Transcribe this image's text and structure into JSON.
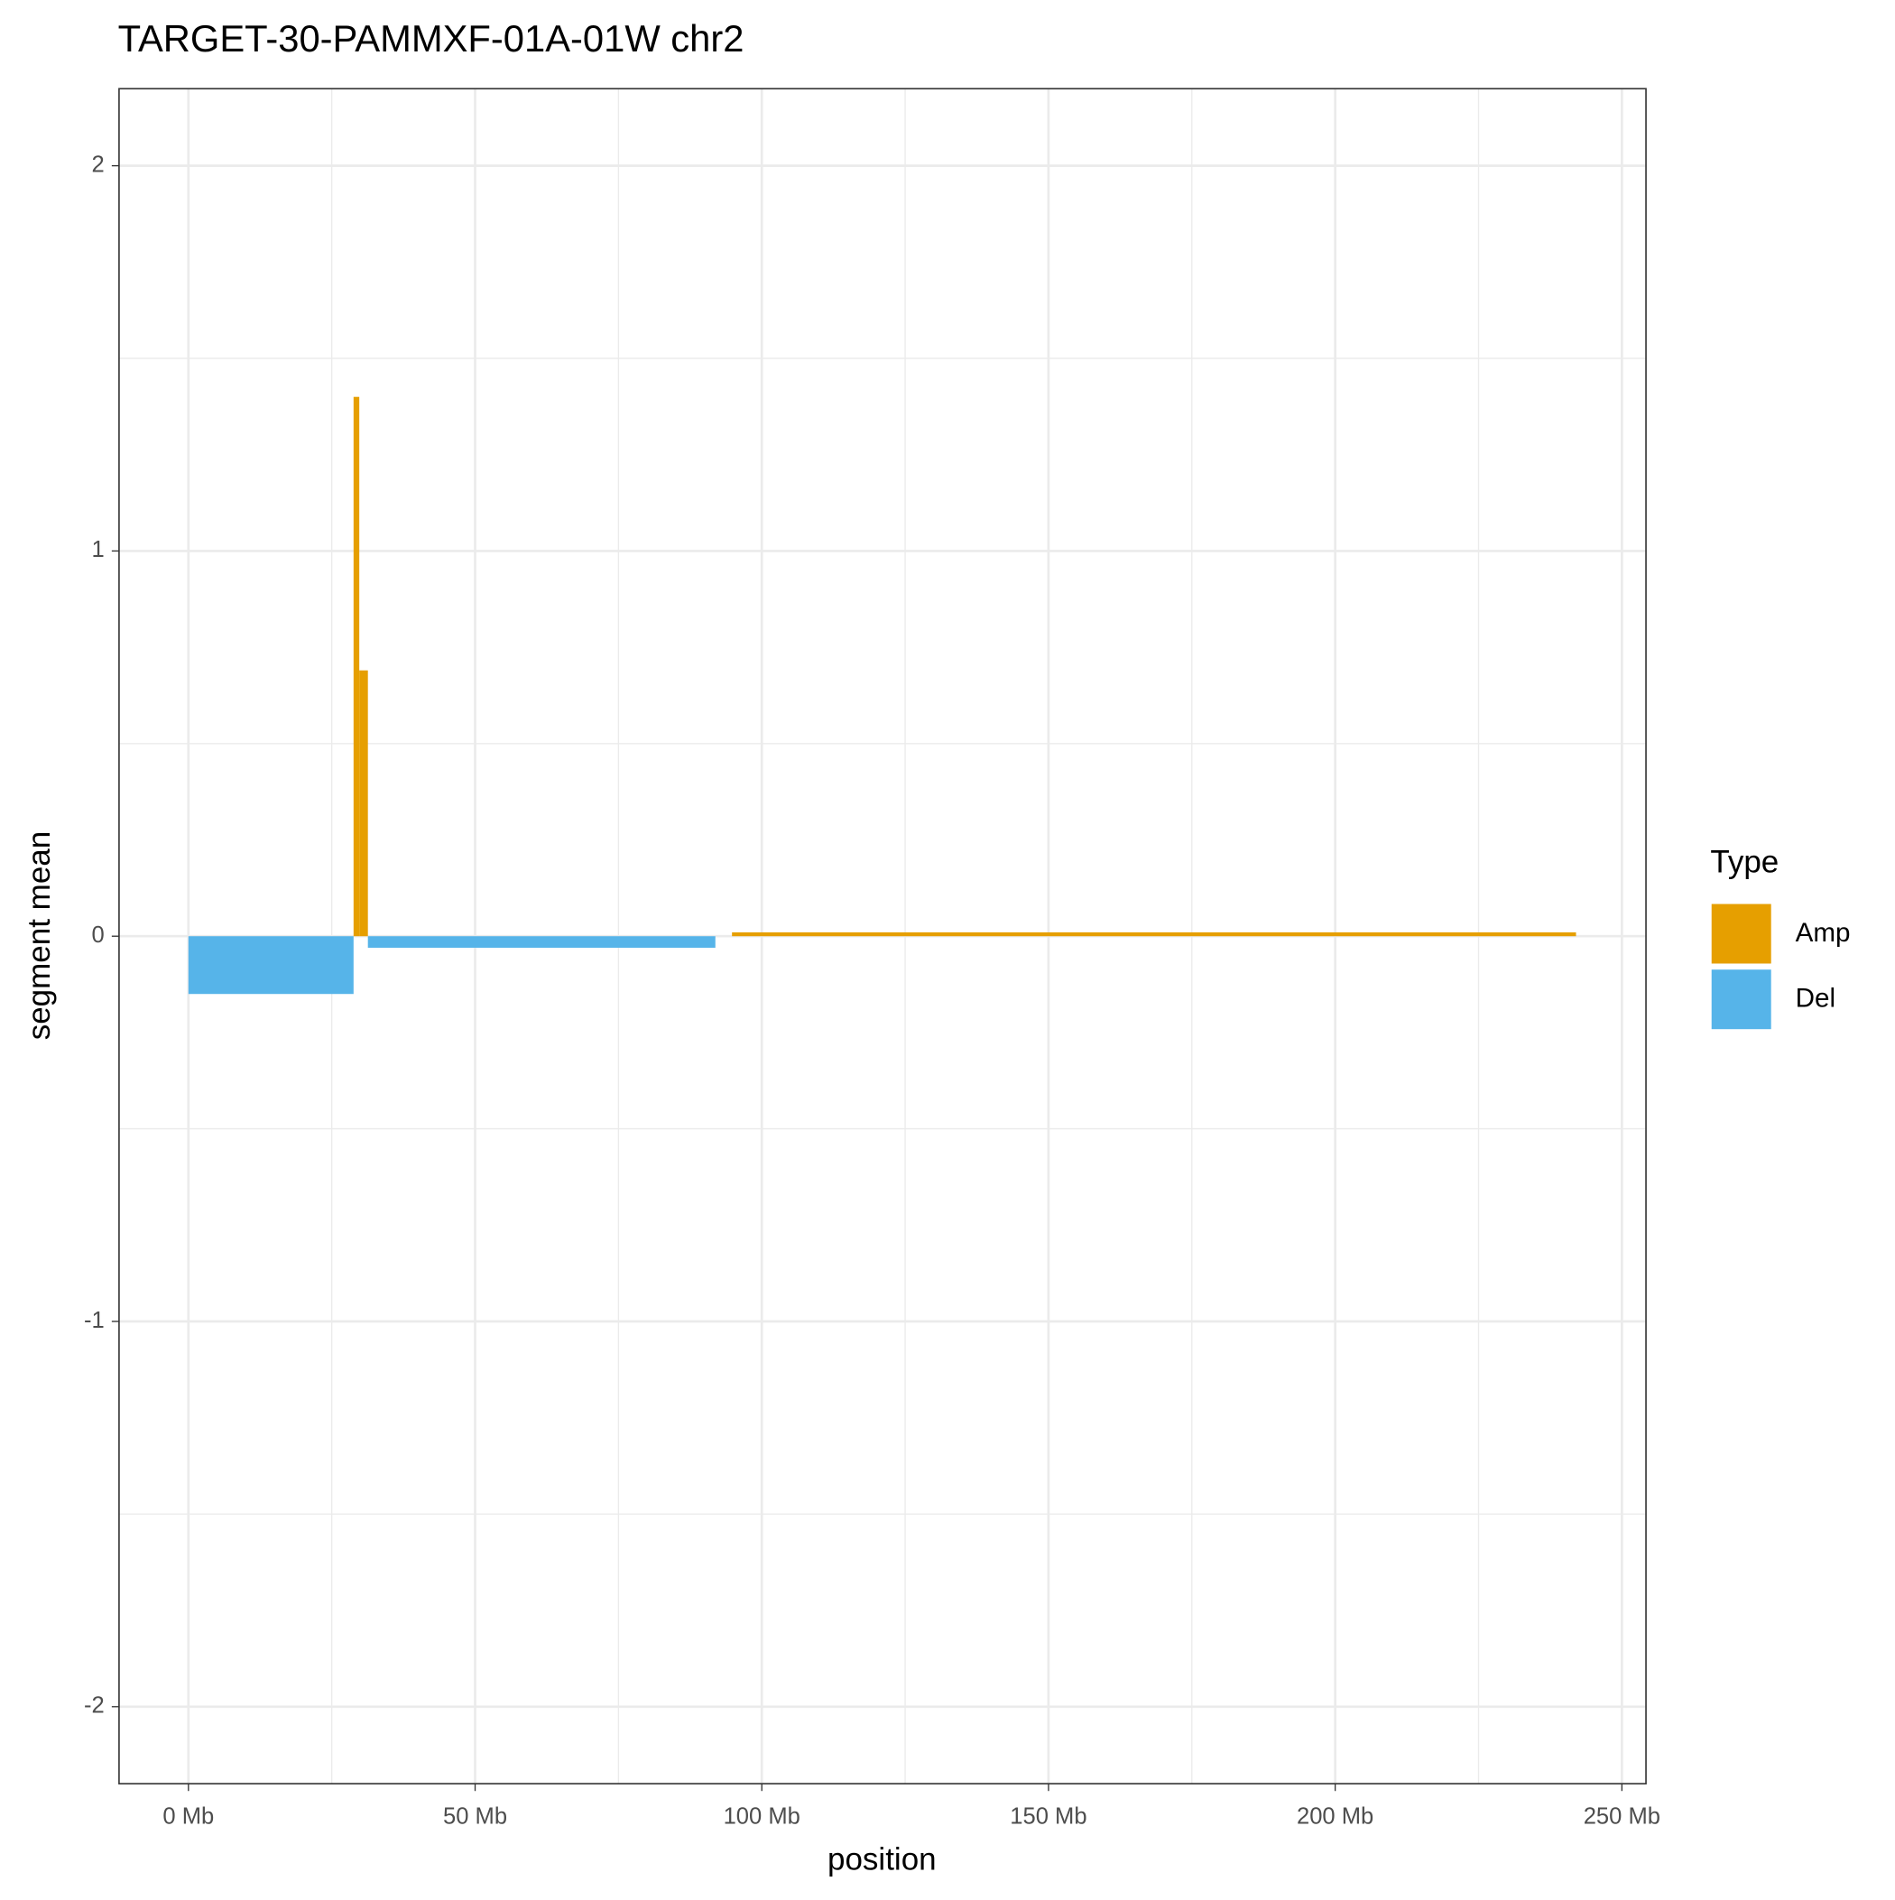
{
  "chart_data": {
    "type": "segment-bar",
    "title": "TARGET-30-PAMMXF-01A-01W chr2",
    "x_label": "position",
    "y_label": "segment mean",
    "legend_title": "Type",
    "xlim": [
      -12.1,
      254.2
    ],
    "ylim": [
      -2.2,
      2.2
    ],
    "xticks": [
      {
        "value": 0,
        "label": "0 Mb"
      },
      {
        "value": 50,
        "label": "50 Mb"
      },
      {
        "value": 100,
        "label": "100 Mb"
      },
      {
        "value": 150,
        "label": "150 Mb"
      },
      {
        "value": 200,
        "label": "200 Mb"
      },
      {
        "value": 250,
        "label": "250 Mb"
      }
    ],
    "yticks": [
      -2,
      -1,
      0,
      1,
      2
    ],
    "grid": true,
    "series": [
      {
        "name": "Amp",
        "color": "#E69F00",
        "start": [
          28.8,
          29.8,
          94.8
        ],
        "end": [
          29.8,
          31.3,
          242.0
        ],
        "values": [
          1.4,
          0.69,
          0.01
        ]
      },
      {
        "name": "Del",
        "color": "#56B4E9",
        "start": [
          0,
          31.3
        ],
        "end": [
          28.8,
          91.9
        ],
        "values": [
          -0.15,
          -0.03
        ]
      }
    ]
  }
}
